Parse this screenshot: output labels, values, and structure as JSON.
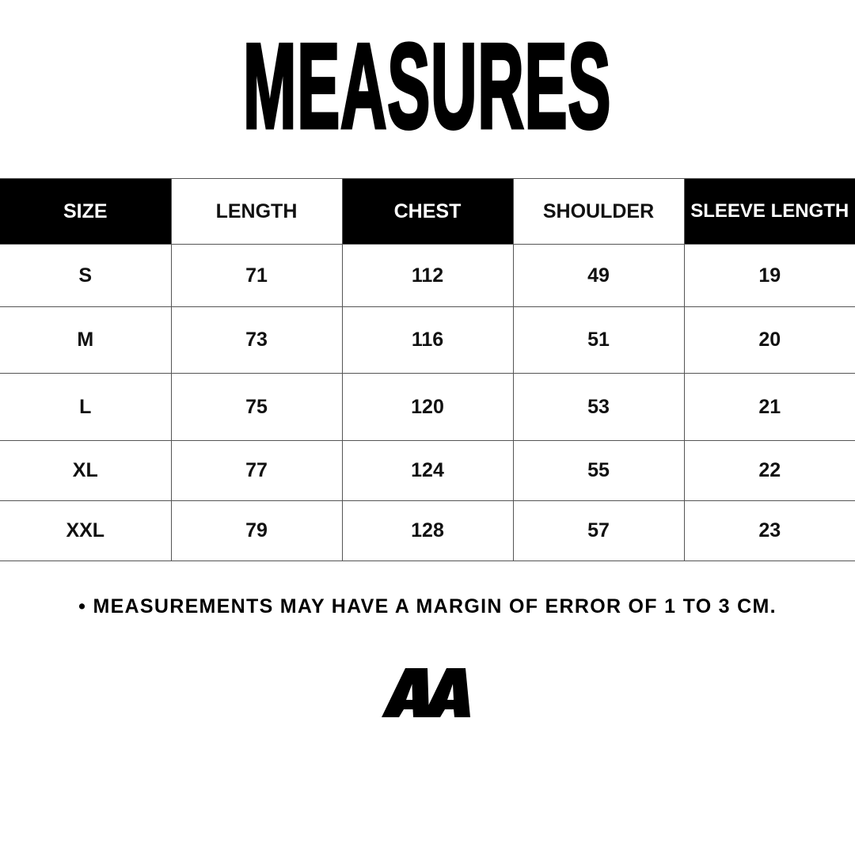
{
  "title": "MEASURES",
  "table": {
    "headers": [
      "SIZE",
      "LENGTH",
      "CHEST",
      "SHOULDER",
      "SLEEVE LENGTH"
    ],
    "rows": [
      [
        "S",
        "71",
        "112",
        "49",
        "19"
      ],
      [
        "M",
        "73",
        "116",
        "51",
        "20"
      ],
      [
        "L",
        "75",
        "120",
        "53",
        "21"
      ],
      [
        "XL",
        "77",
        "124",
        "55",
        "22"
      ],
      [
        "XXL",
        "79",
        "128",
        "57",
        "23"
      ]
    ]
  },
  "note": "• MEASUREMENTS MAY HAVE A MARGIN OF ERROR OF 1 TO 3 CM.",
  "logo": {
    "text": "AA"
  },
  "colors": {
    "header_dark": "#000000",
    "header_light": "#ffffff",
    "text": "#000000"
  }
}
